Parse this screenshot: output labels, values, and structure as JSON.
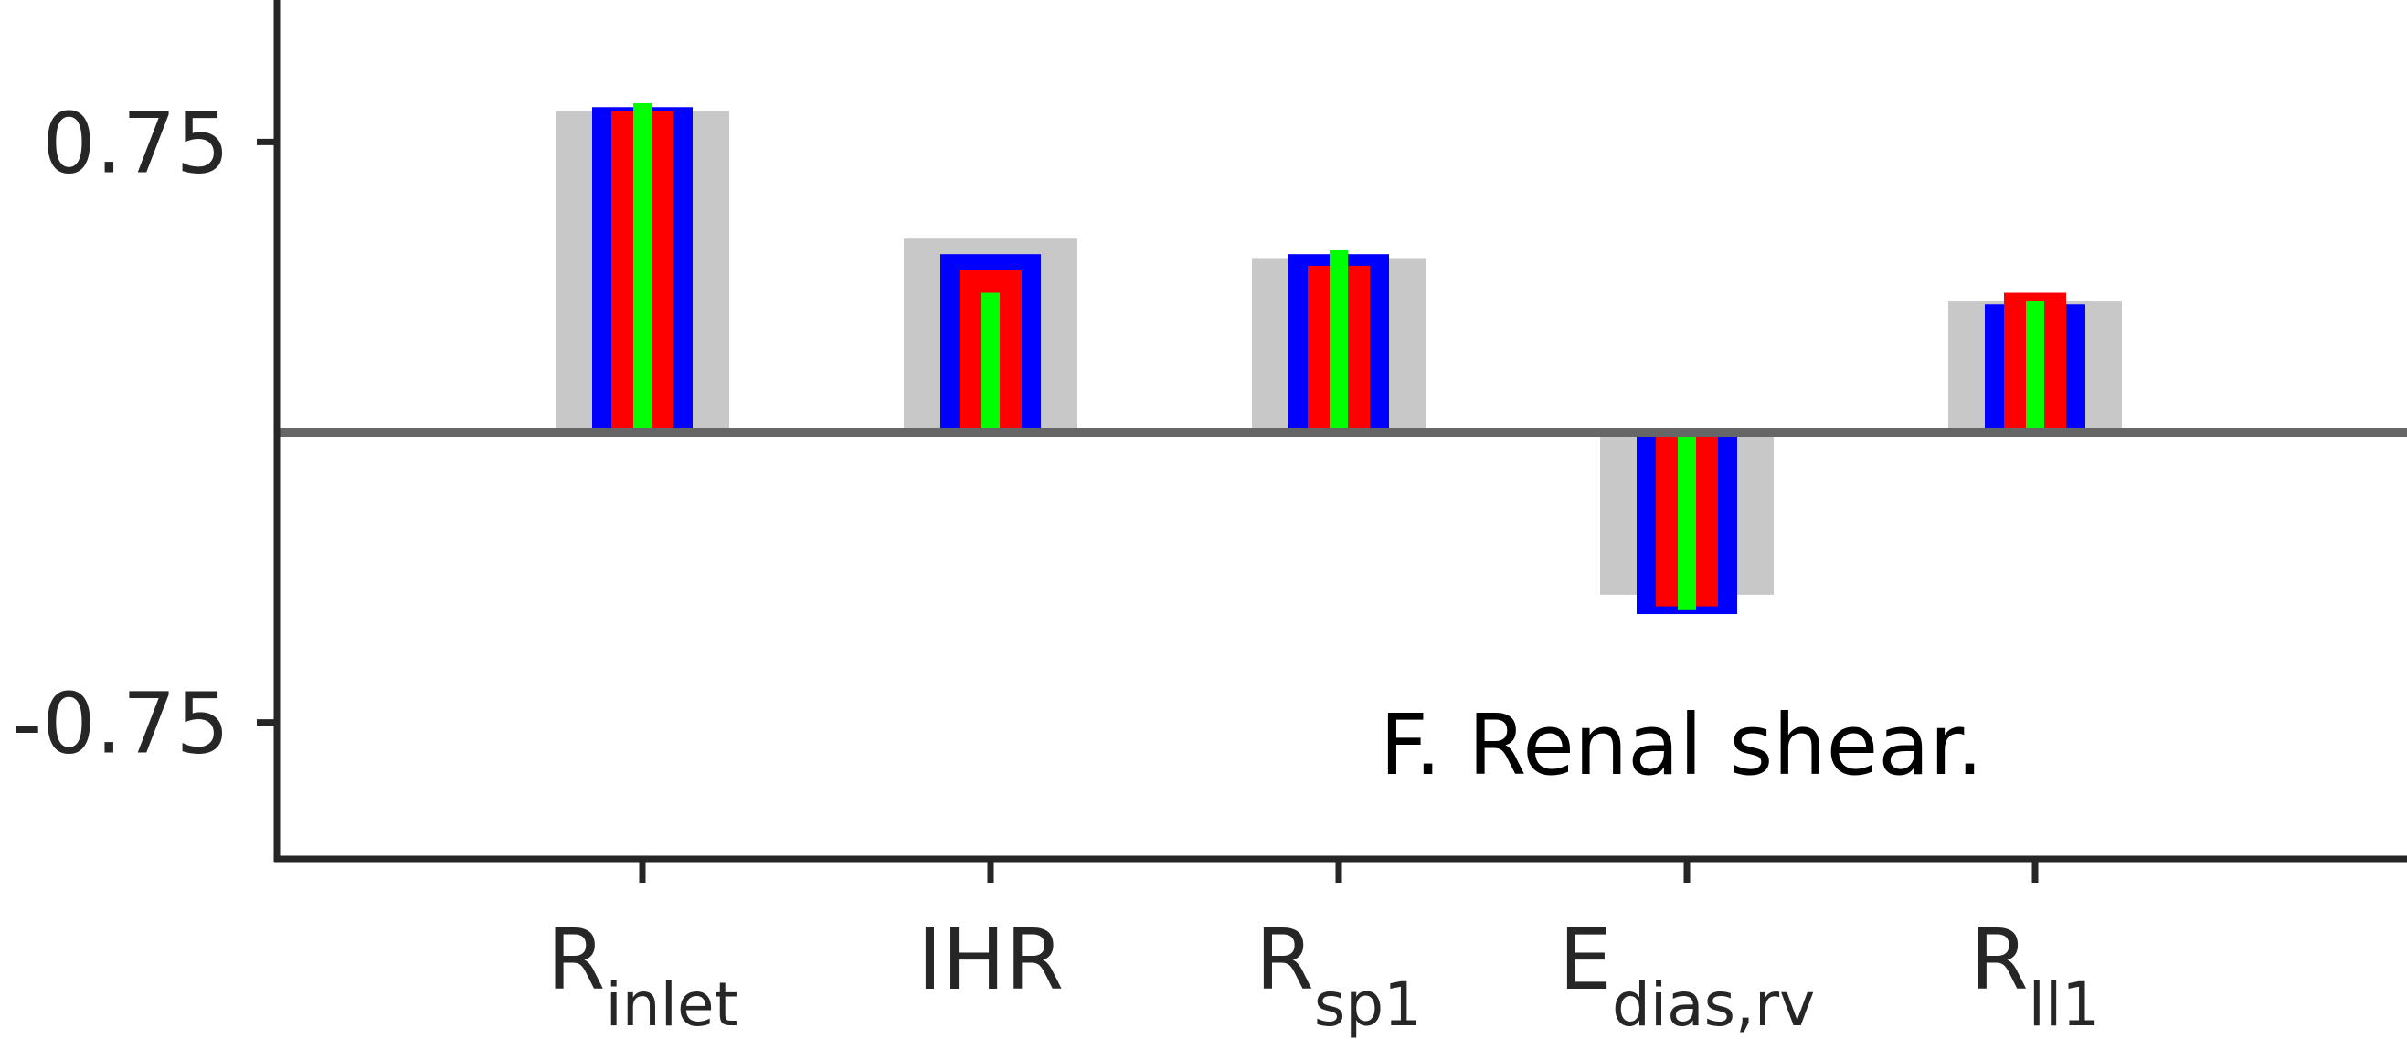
{
  "chart_data": {
    "type": "bar",
    "title": "",
    "xlabel": "",
    "ylabel": "",
    "annotation": "F. Renal shear.",
    "ylim": [
      -1.1,
      1.1
    ],
    "yticks": [
      {
        "value": 0.75,
        "label": "0.75"
      },
      {
        "value": -0.75,
        "label": "-0.75"
      }
    ],
    "categories": [
      {
        "main": "R",
        "sub": "inlet"
      },
      {
        "main": "IHR",
        "sub": ""
      },
      {
        "main": "R",
        "sub": "sp1"
      },
      {
        "main": "E",
        "sub": "dias,rv"
      },
      {
        "main": "R",
        "sub": "ll1"
      }
    ],
    "series": [
      {
        "color": "#c8c8c8",
        "values": [
          0.83,
          0.5,
          0.45,
          -0.42,
          0.34
        ]
      },
      {
        "color": "#0000ff",
        "values": [
          0.84,
          0.46,
          0.46,
          -0.47,
          0.33
        ]
      },
      {
        "color": "#ff0000",
        "values": [
          0.83,
          0.42,
          0.43,
          -0.45,
          0.36
        ]
      },
      {
        "color": "#00ff00",
        "values": [
          0.85,
          0.36,
          0.47,
          -0.46,
          0.34
        ]
      }
    ],
    "zero_line_color": "#666666",
    "axis_color": "#262626"
  }
}
